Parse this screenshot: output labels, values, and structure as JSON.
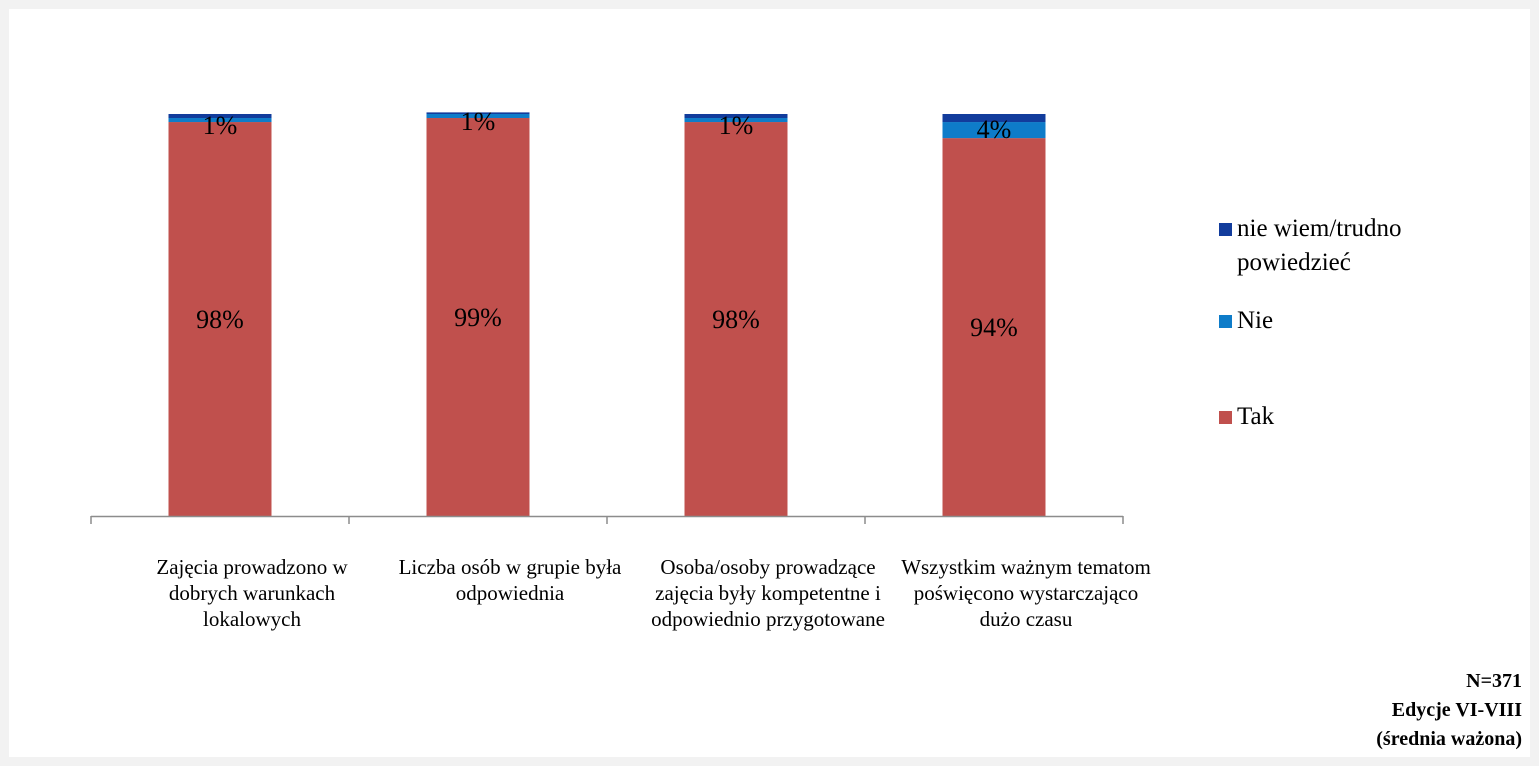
{
  "chart_data": {
    "type": "bar",
    "stacked": true,
    "categories": [
      "Zajęcia prowadzono w dobrych warunkach lokalowych",
      "Liczba osób w grupie była odpowiednia",
      "Osoba/osoby prowadzące zajęcia były kompetentne i odpowiednio przygotowane",
      "Wszystkim ważnym tematom poświęcono wystarczająco dużo czasu"
    ],
    "series": [
      {
        "name": "Tak",
        "values": [
          98,
          99,
          98,
          94
        ],
        "labels": [
          "98%",
          "99%",
          "98%",
          "94%"
        ],
        "color": "#c0504d"
      },
      {
        "name": "Nie",
        "values": [
          1,
          1,
          1,
          4
        ],
        "labels": [
          "1%",
          "1%",
          "1%",
          "4%"
        ],
        "color": "#0e7cc9"
      },
      {
        "name": "nie wiem/trudno powiedzieć",
        "values": [
          1,
          0.4,
          1,
          2
        ],
        "color": "#123c9c"
      }
    ],
    "legend_order": [
      "nie wiem/trudno powiedzieć",
      "Nie",
      "Tak"
    ],
    "ylim": [
      0,
      100
    ],
    "grid": false,
    "legend_position": "right",
    "title": "",
    "xlabel": "",
    "ylabel": ""
  },
  "colors": {
    "tak": "#c0504d",
    "nie": "#0e7cc9",
    "nie_wiem": "#123c9c",
    "axis": "#8c8c8c"
  },
  "note": {
    "line1": "N=371",
    "line2": "Edycje VI-VIII",
    "line3": "(średnia ważona)"
  }
}
